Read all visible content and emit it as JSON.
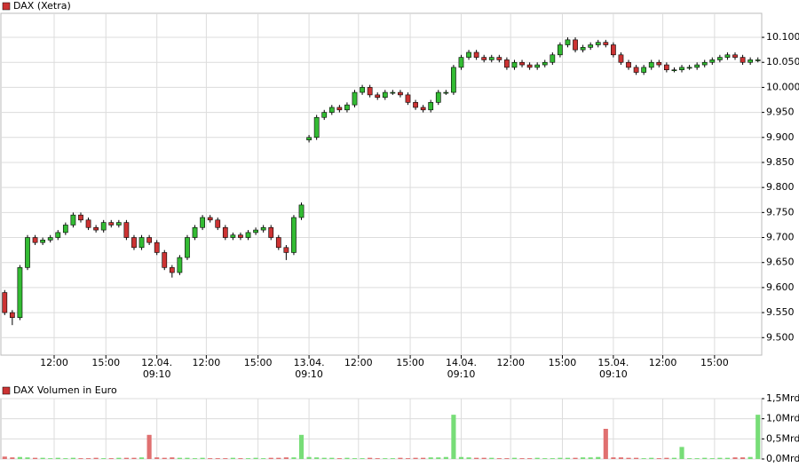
{
  "chart_data": [
    {
      "type": "candlestick",
      "title": "DAX (Xetra)",
      "legend_color": "#cc3333",
      "up_color": "#33bb33",
      "down_color": "#cc3333",
      "open": [
        9590,
        9550,
        9540,
        9640,
        9700,
        9690,
        9695,
        9700,
        9710,
        9725,
        9745,
        9735,
        9720,
        9715,
        9730,
        9725,
        9730,
        9700,
        9680,
        9700,
        9690,
        9670,
        9640,
        9630,
        9660,
        9700,
        9720,
        9740,
        9735,
        9720,
        9700,
        9705,
        9700,
        9710,
        9715,
        9720,
        9700,
        9680,
        9670,
        9740,
        9895,
        9900,
        9940,
        9950,
        9960,
        9955,
        9965,
        9990,
        10000,
        9985,
        9980,
        9990,
        9990,
        9985,
        9970,
        9960,
        9955,
        9970,
        9990,
        9990,
        10040,
        10060,
        10070,
        10060,
        10055,
        10060,
        10055,
        10040,
        10050,
        10045,
        10040,
        10045,
        10050,
        10065,
        10085,
        10095,
        10075,
        10080,
        10085,
        10090,
        10085,
        10065,
        10050,
        10040,
        10030,
        10040,
        10050,
        10045,
        10035,
        10035,
        10040,
        10040,
        10045,
        10050,
        10055,
        10060,
        10065,
        10060,
        10050,
        10055
      ],
      "high": [
        9595,
        9555,
        9645,
        9705,
        9705,
        9700,
        9705,
        9715,
        9730,
        9750,
        9750,
        9740,
        9725,
        9735,
        9735,
        9735,
        9735,
        9705,
        9705,
        9705,
        9695,
        9675,
        9645,
        9665,
        9705,
        9725,
        9745,
        9745,
        9740,
        9725,
        9710,
        9710,
        9715,
        9720,
        9725,
        9725,
        9705,
        9685,
        9745,
        9770,
        9905,
        9945,
        9955,
        9965,
        9965,
        9970,
        9995,
        10005,
        10005,
        9990,
        9995,
        9995,
        9995,
        9990,
        9975,
        9965,
        9975,
        9995,
        9995,
        10045,
        10065,
        10075,
        10075,
        10065,
        10065,
        10065,
        10060,
        10055,
        10055,
        10050,
        10050,
        10055,
        10070,
        10090,
        10100,
        10100,
        10085,
        10090,
        10095,
        10095,
        10090,
        10070,
        10055,
        10045,
        10045,
        10055,
        10055,
        10050,
        10040,
        10045,
        10045,
        10050,
        10055,
        10060,
        10065,
        10070,
        10070,
        10065,
        10060,
        10060
      ],
      "low": [
        9545,
        9525,
        9535,
        9635,
        9685,
        9685,
        9690,
        9695,
        9705,
        9720,
        9730,
        9715,
        9710,
        9710,
        9720,
        9720,
        9695,
        9675,
        9675,
        9685,
        9665,
        9635,
        9620,
        9625,
        9655,
        9695,
        9715,
        9730,
        9715,
        9695,
        9695,
        9695,
        9695,
        9705,
        9710,
        9695,
        9675,
        9655,
        9665,
        9735,
        9890,
        9895,
        9935,
        9945,
        9950,
        9950,
        9960,
        9985,
        9980,
        9975,
        9975,
        9985,
        9980,
        9965,
        9955,
        9950,
        9950,
        9965,
        9985,
        9985,
        10035,
        10055,
        10055,
        10050,
        10050,
        10050,
        10035,
        10035,
        10040,
        10035,
        10035,
        10040,
        10045,
        10060,
        10080,
        10070,
        10070,
        10075,
        10080,
        10080,
        10060,
        10045,
        10035,
        10025,
        10025,
        10035,
        10040,
        10030,
        10030,
        10030,
        10035,
        10035,
        10040,
        10045,
        10050,
        10055,
        10055,
        10045,
        10045,
        10050
      ],
      "close": [
        9550,
        9540,
        9640,
        9700,
        9690,
        9695,
        9700,
        9710,
        9725,
        9745,
        9735,
        9720,
        9715,
        9730,
        9725,
        9730,
        9700,
        9680,
        9700,
        9690,
        9670,
        9640,
        9630,
        9660,
        9700,
        9720,
        9740,
        9735,
        9720,
        9700,
        9705,
        9700,
        9710,
        9715,
        9720,
        9700,
        9680,
        9670,
        9740,
        9765,
        9900,
        9940,
        9950,
        9960,
        9955,
        9965,
        9990,
        10000,
        9985,
        9980,
        9990,
        9990,
        9985,
        9970,
        9960,
        9955,
        9970,
        9990,
        9990,
        10040,
        10060,
        10070,
        10060,
        10055,
        10060,
        10055,
        10040,
        10050,
        10045,
        10040,
        10045,
        10050,
        10065,
        10085,
        10095,
        10075,
        10080,
        10085,
        10090,
        10085,
        10065,
        10050,
        10040,
        10030,
        10040,
        10050,
        10045,
        10035,
        10035,
        10040,
        10040,
        10045,
        10050,
        10055,
        10060,
        10065,
        10060,
        10050,
        10055,
        10055
      ],
      "xlim": [
        -0.5,
        99.5
      ],
      "ylim": [
        9465,
        10148
      ],
      "yticks": [
        {
          "value": 9500,
          "label": "9.500"
        },
        {
          "value": 9550,
          "label": "9.550"
        },
        {
          "value": 9600,
          "label": "9.600"
        },
        {
          "value": 9650,
          "label": "9.650"
        },
        {
          "value": 9700,
          "label": "9.700"
        },
        {
          "value": 9750,
          "label": "9.750"
        },
        {
          "value": 9800,
          "label": "9.800"
        },
        {
          "value": 9850,
          "label": "9.850"
        },
        {
          "value": 9900,
          "label": "9.900"
        },
        {
          "value": 9950,
          "label": "9.950"
        },
        {
          "value": 10000,
          "label": "10.000"
        },
        {
          "value": 10050,
          "label": "10.050"
        },
        {
          "value": 10100,
          "label": "10.100"
        }
      ],
      "xticks": [
        {
          "value": 6.5,
          "label": "12:00"
        },
        {
          "value": 13.3,
          "label": "15:00"
        },
        {
          "value": 20,
          "label": "12.04.\n09:10"
        },
        {
          "value": 26.5,
          "label": "12:00"
        },
        {
          "value": 33.3,
          "label": "15:00"
        },
        {
          "value": 40,
          "label": "13.04.\n09:10"
        },
        {
          "value": 46.5,
          "label": "12:00"
        },
        {
          "value": 53.3,
          "label": "15:00"
        },
        {
          "value": 60,
          "label": "14.04.\n09:10"
        },
        {
          "value": 66.5,
          "label": "12:00"
        },
        {
          "value": 73.3,
          "label": "15:00"
        },
        {
          "value": 80,
          "label": "15.04.\n09:10"
        },
        {
          "value": 86.5,
          "label": "12:00"
        },
        {
          "value": 93.3,
          "label": "15:00"
        }
      ],
      "grid": true
    },
    {
      "type": "bar",
      "title": "DAX Volumen in Euro",
      "legend_color": "#cc3333",
      "up_color": "#77dd77",
      "down_color": "#e07070",
      "values": [
        0.06,
        0.04,
        0.05,
        0.04,
        0.03,
        0.03,
        0.02,
        0.03,
        0.02,
        0.03,
        0.02,
        0.02,
        0.03,
        0.02,
        0.02,
        0.03,
        0.03,
        0.03,
        0.04,
        0.6,
        0.04,
        0.03,
        0.04,
        0.03,
        0.03,
        0.02,
        0.03,
        0.02,
        0.02,
        0.02,
        0.03,
        0.02,
        0.02,
        0.03,
        0.02,
        0.03,
        0.03,
        0.04,
        0.04,
        0.6,
        0.05,
        0.04,
        0.03,
        0.03,
        0.02,
        0.03,
        0.02,
        0.02,
        0.03,
        0.02,
        0.02,
        0.02,
        0.03,
        0.02,
        0.03,
        0.03,
        0.04,
        0.04,
        0.05,
        1.1,
        0.05,
        0.04,
        0.03,
        0.03,
        0.03,
        0.02,
        0.02,
        0.03,
        0.02,
        0.02,
        0.03,
        0.02,
        0.02,
        0.03,
        0.03,
        0.03,
        0.04,
        0.04,
        0.05,
        0.75,
        0.04,
        0.04,
        0.03,
        0.03,
        0.02,
        0.03,
        0.02,
        0.03,
        0.03,
        0.3,
        0.02,
        0.02,
        0.03,
        0.02,
        0.03,
        0.03,
        0.04,
        0.04,
        0.05,
        1.1
      ],
      "ylim": [
        0,
        1.5
      ],
      "yticks": [
        {
          "value": 0,
          "label": "0,0Mrd"
        },
        {
          "value": 0.5,
          "label": "0,5Mrd"
        },
        {
          "value": 1.0,
          "label": "1,0Mrd"
        },
        {
          "value": 1.5,
          "label": "1,5Mrd"
        }
      ],
      "grid": true
    }
  ]
}
